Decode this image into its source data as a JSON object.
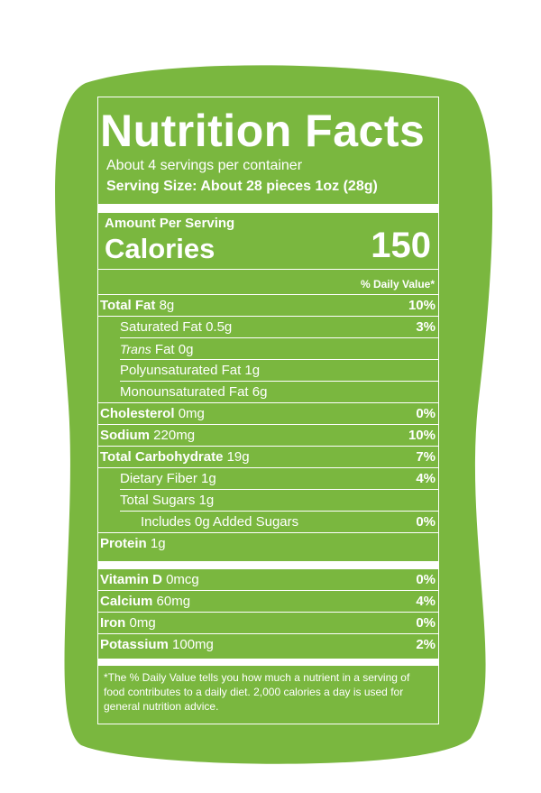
{
  "label": {
    "title": "Nutrition Facts",
    "servings": "About 4 servings per container",
    "serving_size": "Serving Size: About 28 pieces 1oz (28g)",
    "amount_per_serving": "Amount Per Serving",
    "calories_label": "Calories",
    "calories_value": 150,
    "daily_value_header": "% Daily Value*",
    "nutrients": [
      {
        "name": "Total Fat",
        "amount": "8g",
        "dv": "10%",
        "bold": true,
        "level": 0
      },
      {
        "name": "Saturated Fat",
        "amount": "0.5g",
        "dv": "3%",
        "bold": false,
        "level": 1
      },
      {
        "italic": "Trans",
        "name": "Fat",
        "amount": "0g",
        "bold": false,
        "level": 1
      },
      {
        "name": "Polyunsaturated Fat",
        "amount": "1g",
        "bold": false,
        "level": 1
      },
      {
        "name": "Monounsaturated Fat",
        "amount": "6g",
        "bold": false,
        "level": 1
      },
      {
        "name": "Cholesterol",
        "amount": "0mg",
        "dv": "0%",
        "bold": true,
        "level": 0
      },
      {
        "name": "Sodium",
        "amount": "220mg",
        "dv": "10%",
        "bold": true,
        "level": 0
      },
      {
        "name": "Total Carbohydrate",
        "amount": "19g",
        "dv": "7%",
        "bold": true,
        "level": 0
      },
      {
        "name": "Dietary Fiber",
        "amount": "1g",
        "dv": "4%",
        "bold": false,
        "level": 1
      },
      {
        "name": "Total Sugars",
        "amount": "1g",
        "bold": false,
        "level": 1
      },
      {
        "name": "Includes 0g Added Sugars",
        "dv": "0%",
        "bold": false,
        "level": 2
      },
      {
        "name": "Protein",
        "amount": "1g",
        "bold": true,
        "level": 0
      }
    ],
    "vitamins": [
      {
        "name": "Vitamin D",
        "amount": "0mcg",
        "dv": "0%",
        "bold": true,
        "level": 0
      },
      {
        "name": "Calcium",
        "amount": "60mg",
        "dv": "4%",
        "bold": true,
        "level": 0
      },
      {
        "name": "Iron",
        "amount": "0mg",
        "dv": "0%",
        "bold": true,
        "level": 0
      },
      {
        "name": "Potassium",
        "amount": "100mg",
        "dv": "2%",
        "bold": true,
        "level": 0
      }
    ],
    "footnote": "*The % Daily Value tells you how much a nutrient in a serving of food contributes to a daily diet. 2,000 calories a day is used for general nutrition advice."
  }
}
